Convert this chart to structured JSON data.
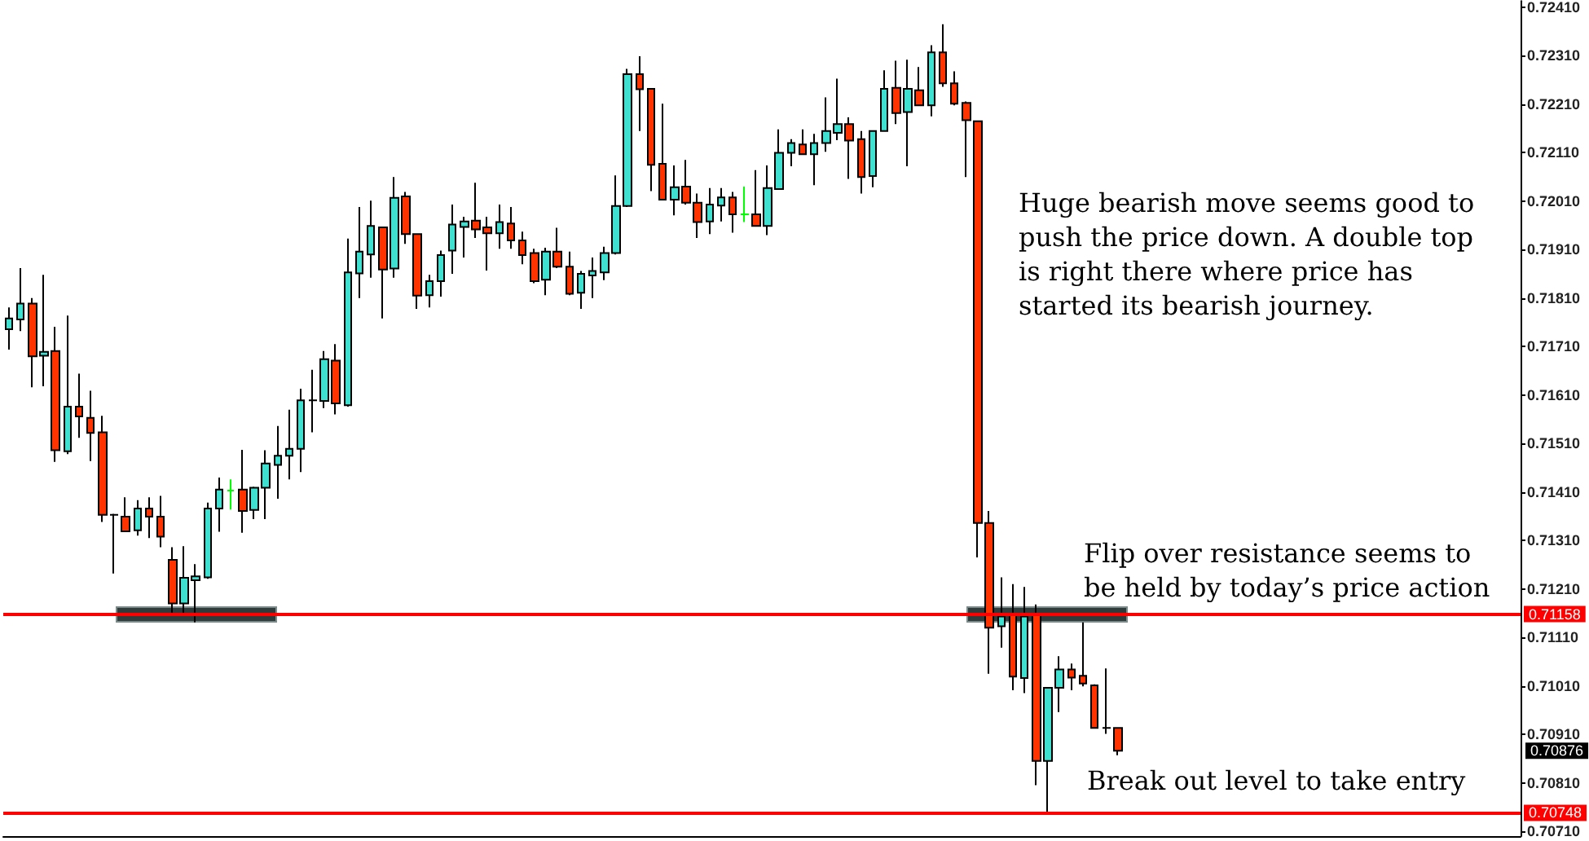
{
  "chart_data": {
    "type": "candlestick",
    "categories": [
      null,
      null,
      null,
      null,
      null,
      null,
      null,
      null,
      null,
      null,
      null,
      null,
      null,
      null,
      null,
      null,
      null,
      null,
      null,
      null,
      null,
      null,
      null,
      null,
      null,
      null,
      null,
      null,
      null,
      null,
      null,
      null,
      null,
      null,
      null,
      null,
      null,
      null,
      null,
      null,
      null,
      null,
      null,
      null,
      null,
      null,
      null,
      null,
      null,
      null,
      null,
      null,
      null,
      null,
      null,
      null,
      null,
      null,
      null,
      null,
      null,
      null,
      null,
      null,
      null,
      null,
      null,
      null,
      null,
      null,
      null,
      null,
      null,
      null,
      null,
      null,
      null,
      null,
      null,
      null,
      null,
      null,
      null,
      null,
      null,
      null,
      null,
      null,
      null,
      null,
      null,
      null,
      null,
      null,
      null,
      null,
      null,
      null,
      null,
      null,
      null,
      null,
      null,
      null,
      null,
      null,
      null,
      null,
      null,
      null,
      null,
      null,
      null,
      null,
      null,
      null,
      null,
      null,
      null,
      null,
      null,
      null,
      null,
      null,
      null,
      null,
      null,
      null,
      null,
      null
    ],
    "ohlc": [
      [
        0.71746,
        0.71791,
        0.71704,
        0.71768
      ],
      [
        0.71766,
        0.71872,
        0.71742,
        0.71799
      ],
      [
        0.71799,
        0.7181,
        0.71626,
        0.7169
      ],
      [
        0.71691,
        0.71858,
        0.71628,
        0.71699
      ],
      [
        0.71701,
        0.71751,
        0.71472,
        0.71496
      ],
      [
        0.71494,
        0.71774,
        0.71488,
        0.71586
      ],
      [
        0.71586,
        0.71654,
        0.71522,
        0.71566
      ],
      [
        0.71563,
        0.71619,
        0.71474,
        0.71532
      ],
      [
        0.71533,
        0.71567,
        0.71348,
        0.71363
      ],
      [
        0.71363,
        0.71365,
        0.71242,
        0.71363
      ],
      [
        0.71359,
        0.71399,
        0.71328,
        0.71329
      ],
      [
        0.71331,
        0.71393,
        0.7132,
        0.71376
      ],
      [
        0.71376,
        0.71399,
        0.71315,
        0.71359
      ],
      [
        0.71359,
        0.71402,
        0.71296,
        0.71318
      ],
      [
        0.7127,
        0.71296,
        0.71158,
        0.7118
      ],
      [
        0.7118,
        0.71298,
        0.71158,
        0.71233
      ],
      [
        0.71228,
        0.71261,
        0.71141,
        0.71236
      ],
      [
        0.71234,
        0.71388,
        0.71231,
        0.71376
      ],
      [
        0.71376,
        0.7144,
        0.71328,
        0.71415
      ],
      [
        0.71413,
        0.71436,
        0.71374,
        0.71413
      ],
      [
        0.71415,
        0.71497,
        0.71326,
        0.71371
      ],
      [
        0.71373,
        0.71421,
        0.71354,
        0.71419
      ],
      [
        0.71419,
        0.71496,
        0.71354,
        0.71469
      ],
      [
        0.71466,
        0.71546,
        0.71396,
        0.71485
      ],
      [
        0.71485,
        0.7158,
        0.71436,
        0.71499
      ],
      [
        0.71499,
        0.71623,
        0.71451,
        0.71599
      ],
      [
        0.71599,
        0.71662,
        0.71533,
        0.71599
      ],
      [
        0.71598,
        0.71701,
        0.71583,
        0.71684
      ],
      [
        0.71681,
        0.71715,
        0.7157,
        0.71593
      ],
      [
        0.71589,
        0.71933,
        0.71586,
        0.71863
      ],
      [
        0.71861,
        0.71998,
        0.7181,
        0.71906
      ],
      [
        0.719,
        0.72011,
        0.71852,
        0.71959
      ],
      [
        0.71956,
        0.71956,
        0.71768,
        0.71869
      ],
      [
        0.71871,
        0.7206,
        0.71852,
        0.72017
      ],
      [
        0.7202,
        0.72029,
        0.71922,
        0.71942
      ],
      [
        0.71942,
        0.71942,
        0.71788,
        0.71815
      ],
      [
        0.71816,
        0.71858,
        0.71791,
        0.71845
      ],
      [
        0.71845,
        0.71908,
        0.71813,
        0.71899
      ],
      [
        0.71908,
        0.72003,
        0.7186,
        0.71962
      ],
      [
        0.71957,
        0.71978,
        0.71894,
        0.71968
      ],
      [
        0.7197,
        0.72048,
        0.71934,
        0.71952
      ],
      [
        0.71956,
        0.71978,
        0.71867,
        0.71944
      ],
      [
        0.71944,
        0.72003,
        0.71912,
        0.71967
      ],
      [
        0.71964,
        0.71998,
        0.71912,
        0.71929
      ],
      [
        0.71929,
        0.71947,
        0.7188,
        0.71899
      ],
      [
        0.71903,
        0.71912,
        0.71841,
        0.71845
      ],
      [
        0.71848,
        0.71914,
        0.71816,
        0.71906
      ],
      [
        0.71906,
        0.71955,
        0.71872,
        0.71875
      ],
      [
        0.71875,
        0.71906,
        0.71816,
        0.71819
      ],
      [
        0.71821,
        0.71866,
        0.71788,
        0.7186
      ],
      [
        0.71857,
        0.71894,
        0.7181,
        0.71866
      ],
      [
        0.71863,
        0.71916,
        0.71847,
        0.71903
      ],
      [
        0.71903,
        0.72063,
        0.719,
        0.72
      ],
      [
        0.72,
        0.72283,
        0.71998,
        0.72272
      ],
      [
        0.72272,
        0.72309,
        0.72155,
        0.72241
      ],
      [
        0.72242,
        0.72242,
        0.72031,
        0.72085
      ],
      [
        0.72087,
        0.72211,
        0.72012,
        0.72013
      ],
      [
        0.72013,
        0.72084,
        0.71981,
        0.72039
      ],
      [
        0.7204,
        0.72095,
        0.72003,
        0.72007
      ],
      [
        0.72007,
        0.72026,
        0.71934,
        0.71967
      ],
      [
        0.71968,
        0.72037,
        0.71942,
        0.72003
      ],
      [
        0.72001,
        0.72037,
        0.71968,
        0.72018
      ],
      [
        0.72018,
        0.72029,
        0.71945,
        0.71983
      ],
      [
        0.71983,
        0.7204,
        0.71967,
        0.71983
      ],
      [
        0.71983,
        0.72074,
        0.71959,
        0.71959
      ],
      [
        0.71959,
        0.72084,
        0.7194,
        0.72037
      ],
      [
        0.72035,
        0.72158,
        0.72035,
        0.7211
      ],
      [
        0.7211,
        0.72138,
        0.72082,
        0.7213
      ],
      [
        0.72127,
        0.72158,
        0.72107,
        0.72107
      ],
      [
        0.72107,
        0.72149,
        0.72043,
        0.7213
      ],
      [
        0.7213,
        0.72224,
        0.72112,
        0.72155
      ],
      [
        0.72151,
        0.72263,
        0.72136,
        0.72169
      ],
      [
        0.72169,
        0.72183,
        0.72056,
        0.72135
      ],
      [
        0.72138,
        0.72155,
        0.72026,
        0.7206
      ],
      [
        0.72062,
        0.72155,
        0.72039,
        0.72155
      ],
      [
        0.72155,
        0.7228,
        0.72155,
        0.72242
      ],
      [
        0.72244,
        0.723,
        0.72169,
        0.72192
      ],
      [
        0.72194,
        0.72302,
        0.72082,
        0.72242
      ],
      [
        0.72239,
        0.72287,
        0.72207,
        0.72208
      ],
      [
        0.72208,
        0.72332,
        0.72185,
        0.72317
      ],
      [
        0.72317,
        0.72375,
        0.72246,
        0.72253
      ],
      [
        0.72253,
        0.72278,
        0.72208,
        0.72211
      ],
      [
        0.72213,
        0.72216,
        0.7206,
        0.72177
      ],
      [
        0.72175,
        0.72175,
        0.71275,
        0.71346
      ],
      [
        0.71346,
        0.71371,
        0.71035,
        0.7113
      ],
      [
        0.71133,
        0.71234,
        0.71089,
        0.71153
      ],
      [
        0.71157,
        0.7122,
        0.71001,
        0.71029
      ],
      [
        0.71026,
        0.71214,
        0.70995,
        0.71153
      ],
      [
        0.71157,
        0.71178,
        0.70805,
        0.70855
      ],
      [
        0.70855,
        0.71006,
        0.70748,
        0.71006
      ],
      [
        0.71006,
        0.71071,
        0.70956,
        0.71044
      ],
      [
        0.71044,
        0.71056,
        0.71001,
        0.71027
      ],
      [
        0.71031,
        0.71141,
        0.71009,
        0.71015
      ],
      [
        0.71011,
        0.71013,
        0.70923,
        0.70923
      ],
      [
        0.70923,
        0.71046,
        0.70911,
        0.70923
      ],
      [
        0.70923,
        0.70925,
        0.70867,
        0.70876
      ],
      null,
      null,
      null,
      null,
      null,
      null,
      null,
      null,
      null,
      null,
      null,
      null,
      null,
      null,
      null,
      null,
      null,
      null,
      null,
      null,
      null,
      null,
      null,
      null,
      null,
      null,
      null,
      null,
      null,
      null,
      null,
      null,
      null,
      null
    ],
    "colors": [
      "#40e0d0",
      "#40e0d0",
      "#ff3300",
      "#40e0d0",
      "#ff3300",
      "#40e0d0",
      "#ff3300",
      "#ff3300",
      "#ff3300",
      "#000000",
      "#ff3300",
      "#40e0d0",
      "#ff3300",
      "#ff3300",
      "#ff3300",
      "#40e0d0",
      "#40e0d0",
      "#40e0d0",
      "#40e0d0",
      "#00ff00",
      "#ff3300",
      "#40e0d0",
      "#40e0d0",
      "#40e0d0",
      "#40e0d0",
      "#40e0d0",
      "#000000",
      "#40e0d0",
      "#ff3300",
      "#40e0d0",
      "#40e0d0",
      "#40e0d0",
      "#ff3300",
      "#40e0d0",
      "#ff3300",
      "#ff3300",
      "#40e0d0",
      "#40e0d0",
      "#40e0d0",
      "#40e0d0",
      "#ff3300",
      "#ff3300",
      "#40e0d0",
      "#ff3300",
      "#ff3300",
      "#ff3300",
      "#40e0d0",
      "#ff3300",
      "#ff3300",
      "#40e0d0",
      "#40e0d0",
      "#40e0d0",
      "#40e0d0",
      "#40e0d0",
      "#ff3300",
      "#ff3300",
      "#ff3300",
      "#40e0d0",
      "#ff3300",
      "#ff3300",
      "#40e0d0",
      "#40e0d0",
      "#ff3300",
      "#00ff00",
      "#ff3300",
      "#40e0d0",
      "#40e0d0",
      "#40e0d0",
      "#ff3300",
      "#40e0d0",
      "#40e0d0",
      "#40e0d0",
      "#ff3300",
      "#ff3300",
      "#40e0d0",
      "#40e0d0",
      "#ff3300",
      "#40e0d0",
      "#ff3300",
      "#40e0d0",
      "#ff3300",
      "#ff3300",
      "#ff3300",
      "#ff3300",
      "#ff3300",
      "#40e0d0",
      "#ff3300",
      "#40e0d0",
      "#ff3300",
      "#40e0d0",
      "#40e0d0",
      "#ff3300",
      "#ff3300",
      "#ff3300",
      "#000000",
      "#ff3300",
      null,
      null,
      null,
      null,
      null,
      null,
      null,
      null,
      null,
      null,
      null,
      null,
      null,
      null,
      null,
      null,
      null,
      null,
      null,
      null,
      null,
      null,
      null,
      null,
      null,
      null,
      null,
      null,
      null,
      null,
      null,
      null,
      null,
      null
    ],
    "ylim": [
      0.707,
      0.72423
    ],
    "yticks": [
      {
        "value": 0.7071,
        "label": "0.70710"
      },
      {
        "value": 0.7081,
        "label": "0.70810"
      },
      {
        "value": 0.7091,
        "label": "0.70910"
      },
      {
        "value": 0.7101,
        "label": "0.71010"
      },
      {
        "value": 0.7111,
        "label": "0.71110"
      },
      {
        "value": 0.7121,
        "label": "0.71210"
      },
      {
        "value": 0.7131,
        "label": "0.71310"
      },
      {
        "value": 0.7141,
        "label": "0.71410"
      },
      {
        "value": 0.7151,
        "label": "0.71510"
      },
      {
        "value": 0.7161,
        "label": "0.71610"
      },
      {
        "value": 0.7171,
        "label": "0.71710"
      },
      {
        "value": 0.7181,
        "label": "0.71810"
      },
      {
        "value": 0.7191,
        "label": "0.71910"
      },
      {
        "value": 0.7201,
        "label": "0.72010"
      },
      {
        "value": 0.7211,
        "label": "0.72110"
      },
      {
        "value": 0.7221,
        "label": "0.72210"
      },
      {
        "value": 0.7231,
        "label": "0.72310"
      },
      {
        "value": 0.7241,
        "label": "0.72410"
      }
    ],
    "ref_lines": [
      {
        "axis": "y",
        "value": 0.71158,
        "label": "0.71158",
        "color": "#ff0000",
        "line_style": "solid"
      },
      {
        "axis": "y",
        "value": 0.70748,
        "label": "0.70748",
        "color": "#ff0000",
        "line_style": "solid"
      }
    ],
    "annotations": [
      "Huge bearish move seems good to push the price down. A double top is right there where price has started its bearish journey.",
      {
        "text": "Flip over resistance seems to be held by today’s price action",
        "y": 0.71158
      },
      "0.70876",
      {
        "text": "Break out level to take entry",
        "y": 0.70748
      }
    ],
    "tick_labels": "y"
  }
}
